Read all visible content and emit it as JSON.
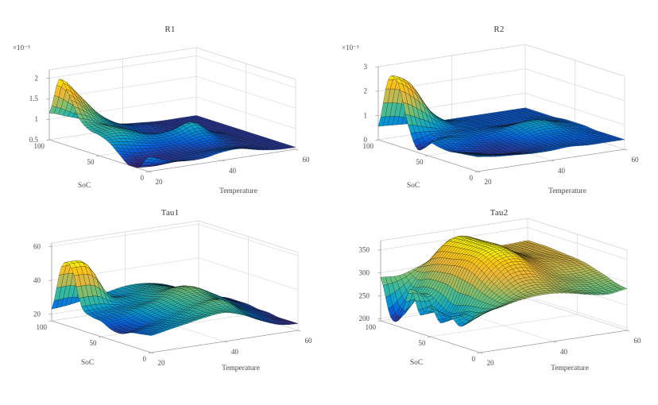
{
  "figure": {
    "background": "#ffffff",
    "text_color": "#4a4a4a",
    "title_color": "#3a3a3a"
  },
  "colormap": {
    "name": "parula",
    "stops": [
      "#352a87",
      "#0363e1",
      "#079dd0",
      "#33b8a1",
      "#71bf78",
      "#bdba52",
      "#efb637",
      "#f9c80e",
      "#f9fb0e"
    ]
  },
  "chart_data": [
    {
      "type": "surface",
      "title": "R1",
      "x_axis": {
        "label": "Temperature",
        "range": [
          20,
          60
        ],
        "ticks": [
          20,
          40,
          60
        ]
      },
      "y_axis": {
        "label": "SoC",
        "range": [
          0,
          100
        ],
        "ticks": [
          0,
          50,
          100
        ]
      },
      "z_axis": {
        "range": [
          0.5,
          2.2
        ],
        "ticks": [
          0.5,
          1,
          1.5,
          2
        ],
        "exponent_label": "×10⁻³"
      },
      "surface": {
        "temps": [
          20,
          25,
          30,
          35,
          40,
          45,
          50,
          55,
          60
        ],
        "socs": [
          0,
          10,
          20,
          30,
          40,
          50,
          60,
          70,
          80,
          90,
          100
        ],
        "values": [
          [
            0.85,
            0.7,
            0.62,
            0.62,
            0.7,
            0.72,
            0.62,
            0.56,
            0.55
          ],
          [
            0.52,
            0.5,
            0.55,
            0.6,
            0.65,
            0.65,
            0.6,
            0.55,
            0.55
          ],
          [
            0.5,
            0.5,
            0.55,
            0.58,
            0.6,
            0.62,
            0.58,
            0.55,
            0.55
          ],
          [
            0.7,
            0.58,
            0.58,
            0.6,
            0.65,
            0.7,
            0.6,
            0.55,
            0.55
          ],
          [
            0.9,
            0.85,
            0.75,
            0.7,
            0.75,
            0.85,
            0.65,
            0.55,
            0.55
          ],
          [
            1.0,
            1.05,
            0.9,
            0.8,
            0.85,
            0.98,
            0.7,
            0.56,
            0.55
          ],
          [
            1.05,
            1.08,
            0.95,
            0.75,
            0.65,
            0.6,
            0.56,
            0.55,
            0.55
          ],
          [
            1.25,
            1.1,
            0.9,
            0.7,
            0.6,
            0.56,
            0.55,
            0.55,
            0.55
          ],
          [
            1.75,
            1.35,
            1.0,
            0.75,
            0.62,
            0.58,
            0.55,
            0.55,
            0.55
          ],
          [
            2.05,
            1.6,
            1.1,
            0.8,
            0.65,
            0.6,
            0.55,
            0.55,
            0.55
          ],
          [
            1.15,
            1.0,
            0.85,
            0.7,
            0.62,
            0.58,
            0.55,
            0.55,
            0.55
          ]
        ]
      }
    },
    {
      "type": "surface",
      "title": "R2",
      "x_axis": {
        "label": "Temperature",
        "range": [
          20,
          60
        ],
        "ticks": [
          20,
          40,
          60
        ]
      },
      "y_axis": {
        "label": "SoC",
        "range": [
          0,
          100
        ],
        "ticks": [
          0,
          50,
          100
        ]
      },
      "z_axis": {
        "range": [
          0,
          3
        ],
        "ticks": [
          0,
          1,
          2,
          3
        ],
        "exponent_label": "×10⁻³"
      },
      "surface": {
        "temps": [
          20,
          25,
          30,
          35,
          40,
          45,
          50,
          55,
          60
        ],
        "socs": [
          0,
          10,
          20,
          30,
          40,
          50,
          60,
          70,
          80,
          90,
          100
        ],
        "values": [
          [
            0.6,
            0.5,
            0.45,
            0.4,
            0.4,
            0.45,
            0.4,
            0.4,
            0.4
          ],
          [
            0.55,
            0.45,
            0.35,
            0.3,
            0.35,
            0.4,
            0.4,
            0.4,
            0.4
          ],
          [
            0.5,
            0.35,
            0.2,
            0.2,
            0.3,
            0.4,
            0.45,
            0.45,
            0.4
          ],
          [
            0.45,
            0.3,
            0.2,
            0.25,
            0.35,
            0.5,
            0.55,
            0.5,
            0.4
          ],
          [
            0.5,
            0.45,
            0.35,
            0.3,
            0.45,
            0.7,
            0.75,
            0.55,
            0.45
          ],
          [
            0.55,
            0.6,
            0.5,
            0.45,
            0.55,
            0.75,
            0.8,
            0.6,
            0.45
          ],
          [
            0.1,
            0.5,
            0.55,
            0.5,
            0.5,
            0.55,
            0.6,
            0.5,
            0.45
          ],
          [
            1.0,
            0.8,
            0.6,
            0.5,
            0.45,
            0.4,
            0.4,
            0.45,
            0.4
          ],
          [
            2.6,
            2.0,
            1.0,
            0.55,
            0.45,
            0.4,
            0.4,
            0.4,
            0.4
          ],
          [
            2.6,
            2.3,
            1.2,
            0.6,
            0.45,
            0.4,
            0.4,
            0.4,
            0.4
          ],
          [
            0.55,
            0.5,
            0.45,
            0.4,
            0.4,
            0.4,
            0.4,
            0.4,
            0.4
          ]
        ]
      }
    },
    {
      "type": "surface",
      "title": "Tau1",
      "x_axis": {
        "label": "Temperature",
        "range": [
          20,
          60
        ],
        "ticks": [
          20,
          40,
          60
        ]
      },
      "y_axis": {
        "label": "SoC",
        "range": [
          0,
          100
        ],
        "ticks": [
          0,
          50,
          100
        ]
      },
      "z_axis": {
        "range": [
          16,
          62
        ],
        "ticks": [
          20,
          40,
          60
        ],
        "exponent_label": ""
      },
      "surface": {
        "temps": [
          20,
          25,
          30,
          35,
          40,
          45,
          50,
          55,
          60
        ],
        "socs": [
          0,
          10,
          20,
          30,
          40,
          50,
          60,
          70,
          80,
          90,
          100
        ],
        "values": [
          [
            26,
            28,
            30,
            32,
            33,
            30,
            25,
            21,
            20
          ],
          [
            25,
            27,
            29,
            31,
            33,
            32,
            26,
            22,
            20
          ],
          [
            24,
            26,
            28,
            31,
            34,
            35,
            28,
            23,
            20
          ],
          [
            21.5,
            24,
            27,
            30,
            33,
            34,
            29,
            24,
            21
          ],
          [
            22,
            24,
            28,
            31,
            34,
            35,
            30,
            25,
            21
          ],
          [
            25,
            26,
            29,
            32,
            35,
            37,
            32,
            26,
            22
          ],
          [
            26,
            27,
            28,
            30,
            34,
            36,
            31,
            26,
            22
          ],
          [
            30,
            30,
            28,
            29,
            32,
            33,
            30,
            25,
            22
          ],
          [
            51,
            49,
            32,
            29,
            31,
            32,
            29,
            25,
            21
          ],
          [
            50,
            48,
            30,
            28,
            30,
            31,
            28,
            24,
            21
          ],
          [
            23,
            24,
            26,
            28,
            30,
            30,
            28,
            24,
            21
          ]
        ]
      }
    },
    {
      "type": "surface",
      "title": "Tau2",
      "x_axis": {
        "label": "Temperature",
        "range": [
          20,
          60
        ],
        "ticks": [
          20,
          40,
          60
        ]
      },
      "y_axis": {
        "label": "SoC",
        "range": [
          0,
          100
        ],
        "ticks": [
          0,
          50,
          100
        ]
      },
      "z_axis": {
        "range": [
          195,
          370
        ],
        "ticks": [
          200,
          250,
          300,
          350
        ],
        "exponent_label": ""
      },
      "surface": {
        "temps": [
          20,
          25,
          30,
          35,
          40,
          45,
          50,
          55,
          60
        ],
        "socs": [
          0,
          10,
          20,
          30,
          40,
          50,
          60,
          70,
          80,
          90,
          100
        ],
        "values": [
          [
            282,
            286,
            295,
            300,
            300,
            294,
            285,
            280,
            286
          ],
          [
            258,
            272,
            288,
            305,
            308,
            298,
            288,
            284,
            290
          ],
          [
            238,
            262,
            295,
            320,
            322,
            308,
            298,
            292,
            298
          ],
          [
            252,
            258,
            305,
            340,
            342,
            320,
            305,
            300,
            305
          ],
          [
            232,
            248,
            320,
            355,
            358,
            332,
            315,
            312,
            312
          ],
          [
            262,
            242,
            330,
            364,
            365,
            340,
            322,
            318,
            316
          ],
          [
            235,
            255,
            330,
            365,
            367,
            345,
            325,
            320,
            318
          ],
          [
            285,
            268,
            325,
            364,
            366,
            340,
            325,
            320,
            320
          ],
          [
            215,
            262,
            320,
            362,
            365,
            335,
            322,
            320,
            322
          ],
          [
            210,
            255,
            310,
            355,
            360,
            330,
            322,
            320,
            322
          ],
          [
            290,
            288,
            300,
            315,
            320,
            322,
            320,
            320,
            322
          ]
        ]
      }
    }
  ]
}
